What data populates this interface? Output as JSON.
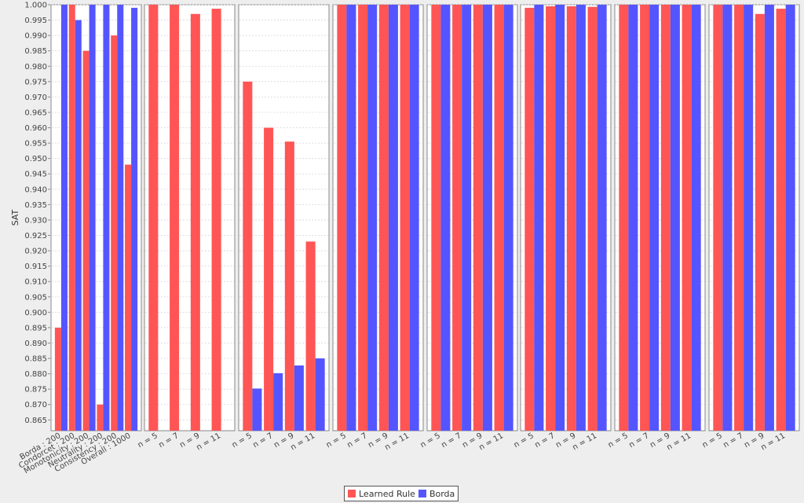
{
  "chart_data": {
    "type": "bar",
    "ylabel": "SAT",
    "ylim": [
      0.8615,
      1.0
    ],
    "yticks": [
      "1.000",
      "0.995",
      "0.990",
      "0.985",
      "0.980",
      "0.975",
      "0.970",
      "0.965",
      "0.960",
      "0.955",
      "0.950",
      "0.945",
      "0.940",
      "0.935",
      "0.930",
      "0.925",
      "0.920",
      "0.915",
      "0.910",
      "0.905",
      "0.900",
      "0.895",
      "0.890",
      "0.885",
      "0.880",
      "0.875",
      "0.870",
      "0.865"
    ],
    "grid": true,
    "legend_position": "bottom-center",
    "series_colors": [
      "#ff5555",
      "#5555ff"
    ],
    "series_names": [
      "Learned Rule",
      "Borda"
    ],
    "panels": [
      {
        "categories": [
          "Borda : 200",
          "Condorcet : 200",
          "Monotonicity : 200",
          "Neutrality : 200",
          "Consistency : 200",
          "Overall : 1000"
        ],
        "series": [
          {
            "name": "Learned Rule",
            "values": [
              0.895,
              1.0,
              0.985,
              0.87,
              0.99,
              0.948
            ]
          },
          {
            "name": "Borda",
            "values": [
              1.0,
              0.995,
              1.0,
              1.0,
              1.0,
              0.999
            ]
          }
        ]
      },
      {
        "categories": [
          "n = 5",
          "n = 7",
          "n = 9",
          "n = 11"
        ],
        "series": [
          {
            "name": "Learned Rule",
            "values": [
              1.0,
              1.0,
              0.997,
              0.9987
            ]
          },
          {
            "name": "Borda",
            "values": [
              null,
              null,
              null,
              null
            ]
          }
        ]
      },
      {
        "categories": [
          "n = 5",
          "n = 7",
          "n = 9",
          "n = 11"
        ],
        "series": [
          {
            "name": "Learned Rule",
            "values": [
              0.975,
              0.96,
              0.9555,
              0.923
            ]
          },
          {
            "name": "Borda",
            "values": [
              0.8752,
              0.8802,
              0.8827,
              0.885
            ]
          }
        ]
      },
      {
        "categories": [
          "n = 5",
          "n = 7",
          "n = 9",
          "n = 11"
        ],
        "series": [
          {
            "name": "Learned Rule",
            "values": [
              1.0,
              1.0,
              1.0,
              1.0
            ]
          },
          {
            "name": "Borda",
            "values": [
              1.0,
              1.0,
              1.0,
              1.0
            ]
          }
        ]
      },
      {
        "categories": [
          "n = 5",
          "n = 7",
          "n = 9",
          "n = 11"
        ],
        "series": [
          {
            "name": "Learned Rule",
            "values": [
              1.0,
              1.0,
              1.0,
              1.0
            ]
          },
          {
            "name": "Borda",
            "values": [
              1.0,
              1.0,
              1.0,
              1.0
            ]
          }
        ]
      },
      {
        "categories": [
          "n = 5",
          "n = 7",
          "n = 9",
          "n = 11"
        ],
        "series": [
          {
            "name": "Learned Rule",
            "values": [
              0.999,
              0.9995,
              0.9995,
              0.9993
            ]
          },
          {
            "name": "Borda",
            "values": [
              1.0,
              1.0,
              1.0,
              1.0
            ]
          }
        ]
      },
      {
        "categories": [
          "n = 5",
          "n = 7",
          "n = 9",
          "n = 11"
        ],
        "series": [
          {
            "name": "Learned Rule",
            "values": [
              1.0,
              1.0,
              1.0,
              1.0
            ]
          },
          {
            "name": "Borda",
            "values": [
              1.0,
              1.0,
              1.0,
              1.0
            ]
          }
        ]
      },
      {
        "categories": [
          "n = 5",
          "n = 7",
          "n = 9",
          "n = 11"
        ],
        "series": [
          {
            "name": "Learned Rule",
            "values": [
              1.0,
              1.0,
              0.997,
              0.9987
            ]
          },
          {
            "name": "Borda",
            "values": [
              1.0,
              1.0,
              1.0,
              1.0
            ]
          }
        ]
      }
    ]
  },
  "legend": {
    "learned_label": "Learned Rule",
    "borda_label": "Borda"
  }
}
